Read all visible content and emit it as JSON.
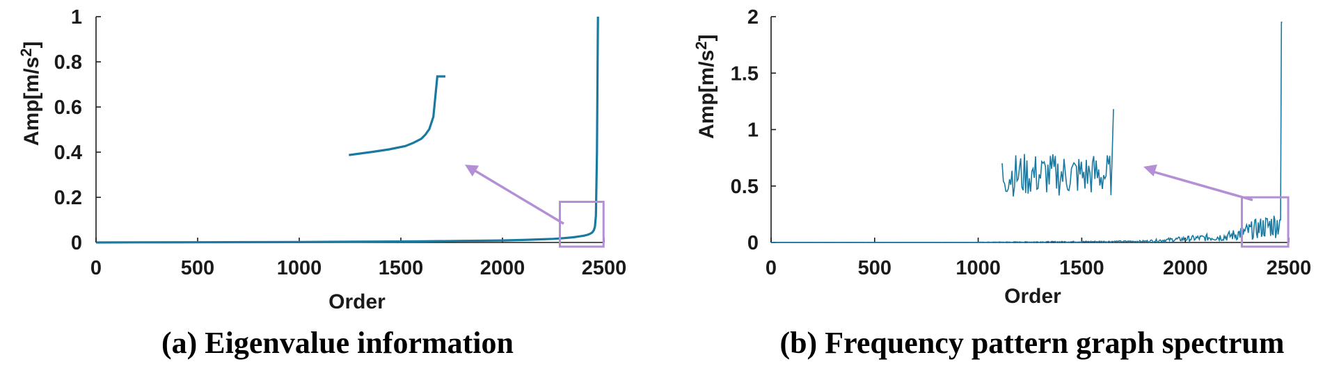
{
  "colors": {
    "series": "#1979a0",
    "highlight": "#b48fd6",
    "axis": "#1a1a1a"
  },
  "chart_data": [
    {
      "type": "line",
      "caption": "(a) Eigenvalue information",
      "xlabel": "Order",
      "ylabel_main": "Amp[m/s",
      "ylabel_sup": "2",
      "ylabel_end": "]",
      "xlim": [
        0,
        2500
      ],
      "ylim": [
        0,
        1
      ],
      "xticks": [
        0,
        500,
        1000,
        1500,
        2000,
        2500
      ],
      "yticks": [
        0,
        0.2,
        0.4,
        0.6,
        0.8,
        1
      ],
      "ytick_labels": [
        "0",
        "0.2",
        "0.4",
        "0.6",
        "0.8",
        "1"
      ],
      "grid": false,
      "series_shape": "monotonic-ascending",
      "series": [
        {
          "x": [
            1,
            200,
            500,
            800,
            1000,
            1200,
            1400,
            1600,
            1800,
            2000,
            2100,
            2200,
            2250,
            2300,
            2350,
            2380,
            2400,
            2420,
            2430,
            2440,
            2445,
            2450,
            2455,
            2460,
            2465,
            2470
          ],
          "y": [
            0.0,
            0.0005,
            0.001,
            0.0015,
            0.002,
            0.003,
            0.004,
            0.005,
            0.007,
            0.009,
            0.011,
            0.014,
            0.016,
            0.019,
            0.023,
            0.027,
            0.03,
            0.034,
            0.038,
            0.043,
            0.048,
            0.055,
            0.07,
            0.12,
            0.4,
            1.0
          ]
        }
      ],
      "zoom_region": {
        "x": [
          2310,
          2470
        ],
        "y": [
          0,
          0.18
        ]
      }
    },
    {
      "type": "line",
      "caption": "(b) Frequency pattern graph spectrum",
      "xlabel": "Order",
      "ylabel_main": "Amp[m/s",
      "ylabel_sup": "2",
      "ylabel_end": "]",
      "xlim": [
        0,
        2500
      ],
      "ylim": [
        0,
        2
      ],
      "xticks": [
        0,
        500,
        1000,
        1500,
        2000,
        2500
      ],
      "yticks": [
        0,
        0.5,
        1,
        1.5,
        2
      ],
      "ytick_labels": [
        "0",
        "0.5",
        "1",
        "1.5",
        "2"
      ],
      "grid": false,
      "series_shape": "noisy-rising-tail",
      "series": [
        {
          "peak_x": 2460,
          "peak_y": 1.95
        }
      ],
      "zoom_region": {
        "x": [
          2300,
          2470
        ],
        "y": [
          0,
          0.4
        ]
      }
    }
  ]
}
